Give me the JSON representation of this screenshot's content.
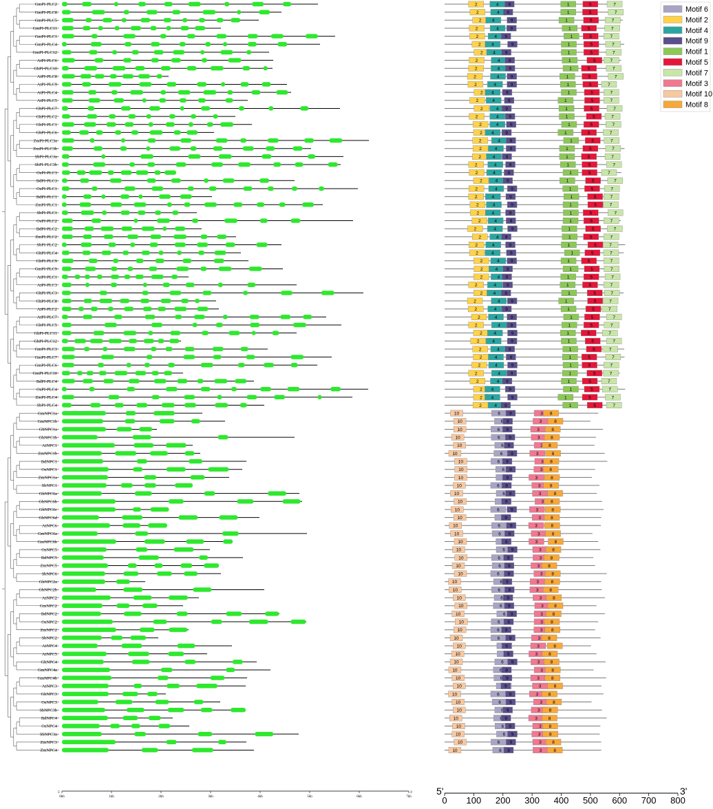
{
  "figure": {
    "gene_axis": {
      "ticks": [
        "0kb",
        "1kb",
        "2kb",
        "3kb",
        "4kb",
        "5kb",
        "6kb",
        "7kb"
      ],
      "left_end": "5'",
      "right_end": "3'"
    },
    "motif_axis": {
      "ticks": [
        0,
        100,
        200,
        300,
        400,
        500,
        600,
        700,
        800
      ],
      "max": 800,
      "left_end": "5'",
      "right_end": "3'"
    }
  },
  "legend": [
    {
      "label": "Motif 6",
      "color": "#a8a4c4"
    },
    {
      "label": "Motif 2",
      "color": "#ffd24a"
    },
    {
      "label": "Motif 4",
      "color": "#2aa6a2"
    },
    {
      "label": "Motif 9",
      "color": "#5a4e8c"
    },
    {
      "label": "Motif 1",
      "color": "#8cc858"
    },
    {
      "label": "Motif 5",
      "color": "#e4163a"
    },
    {
      "label": "Motif 7",
      "color": "#c8e6a8"
    },
    {
      "label": "Motif 3",
      "color": "#f07890"
    },
    {
      "label": "Motif 10",
      "color": "#f8c8a0"
    },
    {
      "label": "Motif 8",
      "color": "#f8a838"
    }
  ],
  "genes": [
    "GmPI-PLC2",
    "GmPI-PLC8",
    "GmPI-PLC5",
    "GmPI-PLC11",
    "GmPI-PLC1",
    "GmPI-PLC4",
    "GmPI-PLC12",
    "AtPI-PLC6",
    "GhPI-PLC10",
    "AtPI-PLC8",
    "AtPI-PLC9",
    "AtPI-PLC4",
    "AtPI-PLC5",
    "GhPI-PLC7",
    "GhPI-PLC2",
    "GhPI-PLC1",
    "GhPI-PLC6",
    "ZmPI-PLC3a",
    "ZmPI-PLC3b",
    "SbPI-PLC3a",
    "SbPI-PLC3b",
    "OsPI-PLC3",
    "BdPI-PLC3",
    "OsPI-PLC1",
    "BdPI-PLC1",
    "ZmPI-PLC1",
    "SbPI-PLC1",
    "OsPI-PLC2",
    "BdPI-PLC2",
    "ZmPI-PLC2",
    "SbPI-PLC2",
    "GhPI-PLC4",
    "GhPI-PLC9",
    "GmPI-PLC9",
    "AtPI-PLC1",
    "AtPI-PLC3",
    "GhPI-PLC3",
    "GhPI-PLC8",
    "AtPI-PLC2",
    "AtPI-PLC7",
    "GhPI-PLC5",
    "GhPI-PLC11",
    "GhPI-PLC12",
    "GmPI-PLC3",
    "GmPI-PLC7",
    "GmPI-PLC6",
    "GmPI-PLC10",
    "BdPI-PLC4",
    "OsPI-PLC4",
    "ZmPI-PLC4",
    "SbPI-PLC4",
    "GmNPC1a",
    "GmNPC1b",
    "GhNPC1a",
    "GhNPC1b",
    "AtNPC1",
    "ZmNPC1b",
    "BdNPC1",
    "OsNPC1",
    "ZmNPC1a",
    "SbNPC1",
    "GhNPC6a",
    "GhNPC6b",
    "GhNPC6c",
    "GhNPC6d",
    "AtNPC6",
    "GmNPC6a",
    "GmNPC6b",
    "OsNPC5",
    "BdNPC5",
    "ZmNPC5",
    "SbNPC6",
    "GhNPC2a",
    "GhNPC2b",
    "AtNPC2",
    "GmNPC2",
    "BdNPC2",
    "OsNPC2",
    "ZmNPC2",
    "SbNPC2",
    "AtNPC4",
    "AtNPC5",
    "GhNPC4",
    "GmNPC4a",
    "GmNPC4b",
    "AtNPC3",
    "GhNPC3",
    "OsNPC3",
    "SbNPC3b",
    "BdNPC4",
    "OsNPC4",
    "SbNPC3a",
    "ZmNPC3",
    "ZmNPC4"
  ]
}
